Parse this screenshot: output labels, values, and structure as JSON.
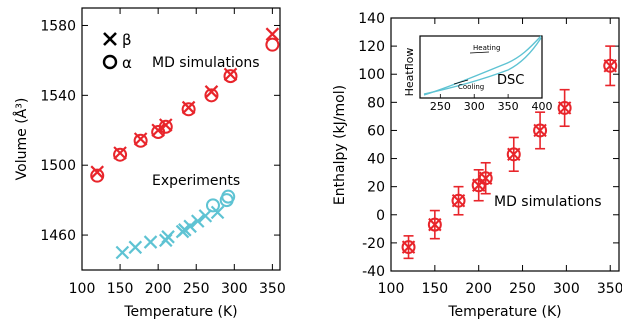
{
  "colors": {
    "md": "#e8252b",
    "exp": "#5ec3d3",
    "axis": "#000000"
  },
  "chart_data": [
    {
      "type": "scatter",
      "title": "",
      "xlabel": "Temperature (K)",
      "ylabel": "Volume (Å³)",
      "xlim": [
        100,
        360
      ],
      "ylim": [
        1440,
        1590
      ],
      "xticks": [
        100,
        150,
        200,
        250,
        300,
        350
      ],
      "yticks": [
        1460,
        1500,
        1540,
        1580
      ],
      "legend": {
        "placement": "top-left",
        "beta_label": "β",
        "alpha_label": "α"
      },
      "annotations": {
        "md": "MD simulations",
        "exp": "Experiments"
      },
      "series": [
        {
          "name": "β",
          "group": "MD simulations",
          "marker": "x",
          "x": [
            120,
            150,
            177,
            200,
            210,
            240,
            270,
            295,
            350
          ],
          "y": [
            1496,
            1507,
            1515,
            1520,
            1523,
            1533,
            1542,
            1552,
            1575
          ]
        },
        {
          "name": "α",
          "group": "MD simulations",
          "marker": "o",
          "x": [
            120,
            150,
            177,
            200,
            210,
            240,
            270,
            295,
            350
          ],
          "y": [
            1494,
            1506,
            1514,
            1519,
            1522,
            1532,
            1540,
            1551,
            1569
          ]
        },
        {
          "name": "β",
          "group": "Experiments",
          "marker": "x",
          "x": [
            153,
            170,
            190,
            210,
            213,
            232,
            235,
            242,
            252,
            262,
            278
          ],
          "y": [
            1450,
            1453,
            1456,
            1457,
            1459,
            1462,
            1463,
            1465,
            1468,
            1471,
            1473
          ]
        },
        {
          "name": "α",
          "group": "Experiments",
          "marker": "o",
          "x": [
            272,
            290,
            292
          ],
          "y": [
            1477,
            1480,
            1482
          ]
        }
      ]
    },
    {
      "type": "scatter",
      "title": "",
      "xlabel": "Temperature (K)",
      "ylabel": "Enthalpy (kJ/mol)",
      "xlim": [
        100,
        360
      ],
      "ylim": [
        -40,
        140
      ],
      "xticks": [
        100,
        150,
        200,
        250,
        300,
        350
      ],
      "yticks": [
        -40,
        -20,
        0,
        20,
        40,
        60,
        80,
        100,
        120,
        140
      ],
      "annotations": {
        "md": "MD simulations"
      },
      "series": [
        {
          "name": "MD simulations",
          "marker": "x-in-circle",
          "error_bars": true,
          "x": [
            120,
            150,
            177,
            200,
            208,
            240,
            270,
            298,
            350
          ],
          "y": [
            -23,
            -7,
            10,
            21,
            26,
            43,
            60,
            76,
            106
          ],
          "err": [
            8,
            10,
            10,
            11,
            11,
            12,
            13,
            13,
            14
          ]
        }
      ],
      "inset": {
        "label": "DSC",
        "ylabel": "Heatflow",
        "xlim": [
          220,
          400
        ],
        "xticks": [
          250,
          300,
          350,
          400
        ],
        "heating_label": "Heating",
        "cooling_label": "Cooling"
      }
    }
  ]
}
